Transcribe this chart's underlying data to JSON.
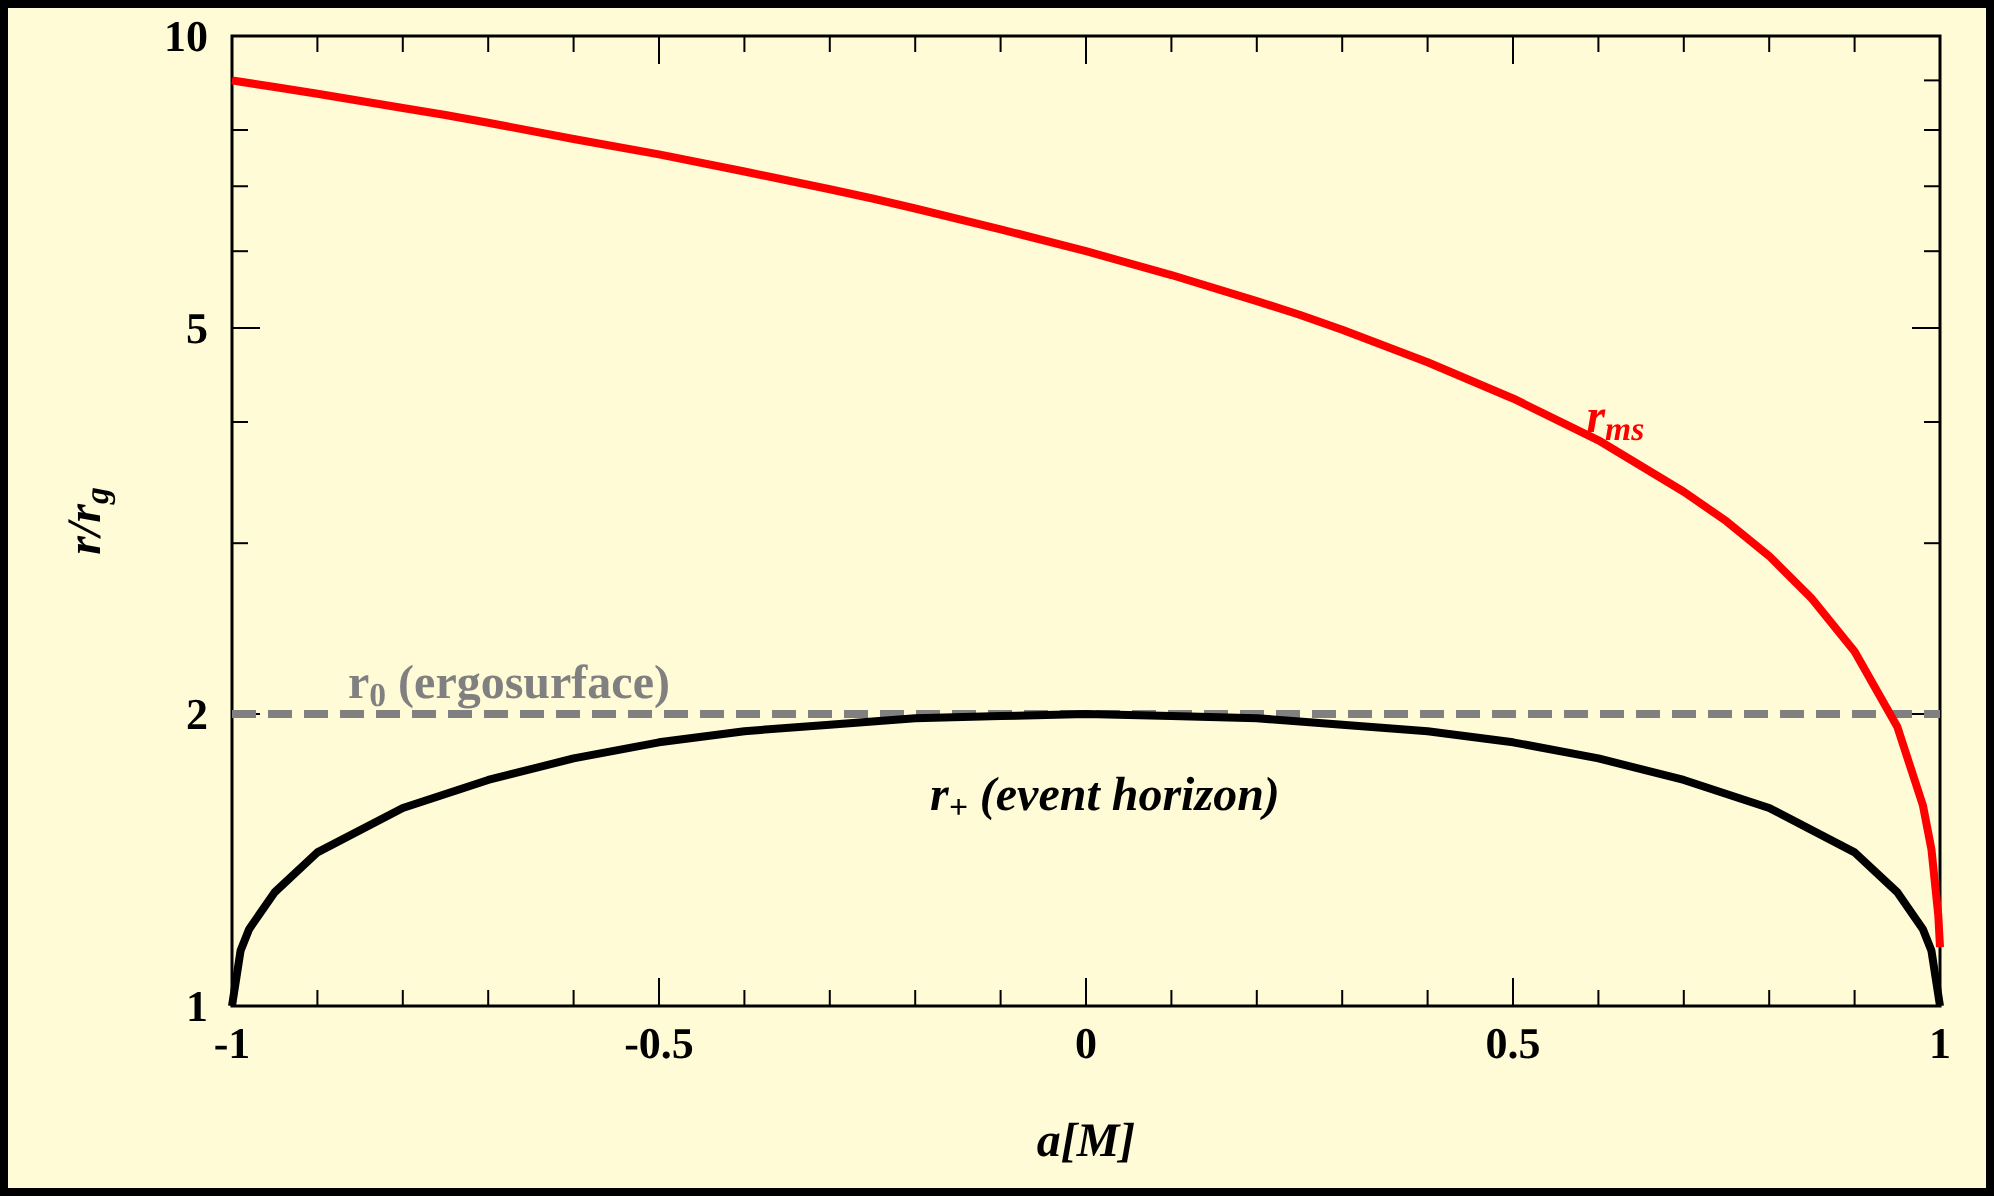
{
  "chart_data": {
    "type": "line",
    "xlabel": "a[M]",
    "ylabel": "r/r$_{g}$",
    "log": "y",
    "xlim": [
      -1,
      1
    ],
    "ylim": [
      1,
      10
    ],
    "xticks": [
      -1,
      {
        "value": -0.9,
        "label": null
      },
      {
        "value": -0.8,
        "label": null
      },
      {
        "value": -0.7,
        "label": null
      },
      {
        "value": -0.6,
        "label": null
      },
      -0.5,
      {
        "value": -0.4,
        "label": null
      },
      {
        "value": -0.3,
        "label": null
      },
      {
        "value": -0.2,
        "label": null
      },
      {
        "value": -0.1,
        "label": null
      },
      0,
      {
        "value": 0.1,
        "label": null
      },
      {
        "value": 0.2,
        "label": null
      },
      {
        "value": 0.3,
        "label": null
      },
      {
        "value": 0.4,
        "label": null
      },
      0.5,
      {
        "value": 0.6,
        "label": null
      },
      {
        "value": 0.7,
        "label": null
      },
      {
        "value": 0.8,
        "label": null
      },
      {
        "value": 0.9,
        "label": null
      },
      1
    ],
    "yticks": [
      1,
      2,
      {
        "value": 3,
        "label": null
      },
      {
        "value": 4,
        "label": null
      },
      5,
      {
        "value": 6,
        "label": null
      },
      {
        "value": 7,
        "label": null
      },
      {
        "value": 8,
        "label": null
      },
      {
        "value": 9,
        "label": null
      },
      10
    ],
    "grid": false,
    "marker": "none",
    "line_style": "solid",
    "series": [
      {
        "name": "r$_{ms}$",
        "color": "#ff0000",
        "x": [
          -1,
          -0.99,
          -0.95,
          -0.9,
          -0.8,
          -0.75,
          -0.7,
          -0.6,
          -0.5,
          -0.4,
          -0.3,
          -0.25,
          -0.2,
          -0.1,
          0,
          0.1,
          0.2,
          0.25,
          0.3,
          0.4,
          0.5,
          0.6,
          0.7,
          0.75,
          0.8,
          0.85,
          0.9,
          0.95,
          0.98,
          0.99,
          0.998,
          1
        ],
        "values": [
          9,
          8.97,
          8.86,
          8.72,
          8.43,
          8.29,
          8.14,
          7.83,
          7.55,
          7.25,
          6.95,
          6.8,
          6.64,
          6.32,
          6,
          5.67,
          5.33,
          5.16,
          4.98,
          4.61,
          4.23,
          3.83,
          3.39,
          3.16,
          2.91,
          2.63,
          2.32,
          1.94,
          1.61,
          1.45,
          1.24,
          1.15
        ]
      },
      {
        "name": "r$_{+}$ (event horizon)",
        "color": "#000000",
        "x": [
          -1,
          -0.99,
          -0.98,
          -0.95,
          -0.9,
          -0.8,
          -0.7,
          -0.6,
          -0.5,
          -0.4,
          -0.3,
          -0.2,
          -0.1,
          0,
          0.1,
          0.2,
          0.3,
          0.4,
          0.5,
          0.6,
          0.7,
          0.8,
          0.9,
          0.95,
          0.98,
          0.99,
          1
        ],
        "values": [
          1,
          1.14,
          1.2,
          1.31,
          1.44,
          1.6,
          1.71,
          1.8,
          1.87,
          1.92,
          1.95,
          1.98,
          1.99,
          2,
          1.99,
          1.98,
          1.95,
          1.92,
          1.87,
          1.8,
          1.71,
          1.6,
          1.44,
          1.31,
          1.2,
          1.14,
          1
        ]
      }
    ],
    "ref_lines": [
      {
        "axis": "y",
        "value": 2,
        "label": "r$_{0}$ (ergosurface)",
        "color": "#808080",
        "line_style": "dashed"
      }
    ]
  }
}
